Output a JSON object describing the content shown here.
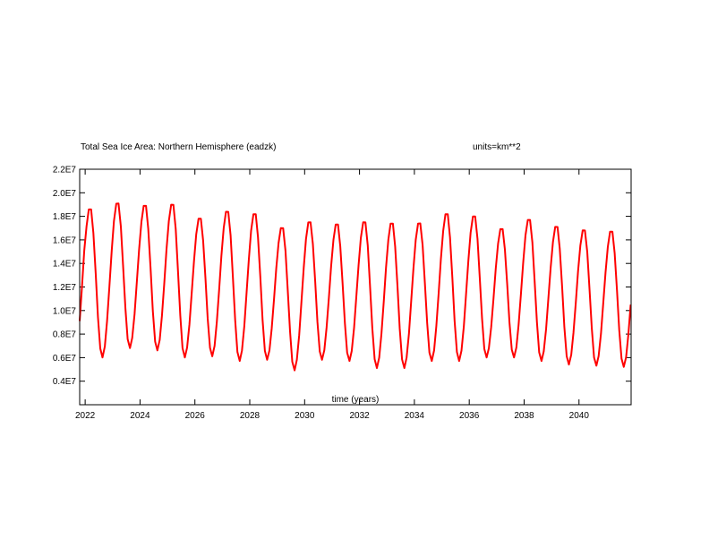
{
  "chart_data": {
    "type": "line",
    "title": "Total Sea Ice Area: Northern Hemisphere (eadzk)",
    "units": "units=km**2",
    "xlabel": "time (years)",
    "ylabel": "",
    "xlim": [
      2021.8,
      2041.9
    ],
    "ylim": [
      2000000.0,
      22000000.0
    ],
    "x_ticks": [
      2022,
      2024,
      2026,
      2028,
      2030,
      2032,
      2034,
      2036,
      2038,
      2040
    ],
    "x_tick_labels": [
      "2022",
      "2024",
      "2026",
      "2028",
      "2030",
      "2032",
      "2034",
      "2036",
      "2038",
      "2040"
    ],
    "y_ticks": [
      4000000.0,
      6000000.0,
      8000000.0,
      10000000.0,
      12000000.0,
      14000000.0,
      16000000.0,
      18000000.0,
      20000000.0,
      22000000.0
    ],
    "y_tick_labels": [
      "0.4E7",
      "0.6E7",
      "0.8E7",
      "1.0E7",
      "1.2E7",
      "1.4E7",
      "1.6E7",
      "1.8E7",
      "2.0E7",
      "2.2E7"
    ],
    "grid": false,
    "line_color": "#ff0000",
    "series": [
      {
        "name": "",
        "annual_cycles": {
          "years": [
            2022,
            2023,
            2024,
            2025,
            2026,
            2027,
            2028,
            2029,
            2030,
            2031,
            2032,
            2033,
            2034,
            2035,
            2036,
            2037,
            2038,
            2039,
            2040,
            2041
          ],
          "max_values": [
            18800000.0,
            19300000.0,
            19100000.0,
            19200000.0,
            18000000.0,
            18600000.0,
            18400000.0,
            17200000.0,
            17700000.0,
            17500000.0,
            17700000.0,
            17600000.0,
            17600000.0,
            18400000.0,
            18200000.0,
            17100000.0,
            17900000.0,
            17300000.0,
            17000000.0,
            16900000.0
          ],
          "min_values": [
            6000000.0,
            6800000.0,
            6600000.0,
            6000000.0,
            6100000.0,
            5700000.0,
            5800000.0,
            4900000.0,
            5800000.0,
            5700000.0,
            5100000.0,
            5100000.0,
            5700000.0,
            5700000.0,
            6000000.0,
            6000000.0,
            5700000.0,
            5400000.0,
            5300000.0,
            5200000.0
          ]
        }
      }
    ]
  }
}
